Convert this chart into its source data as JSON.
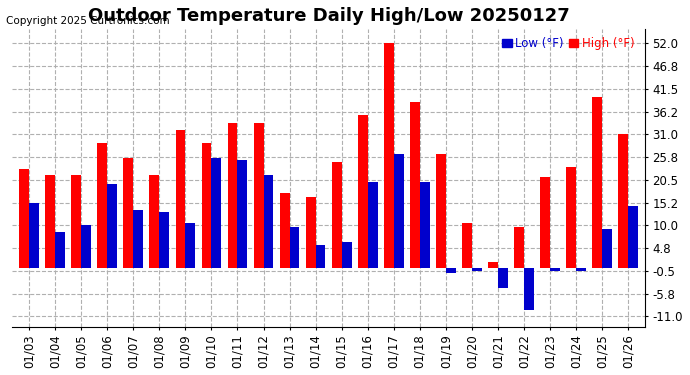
{
  "title": "Outdoor Temperature Daily High/Low 20250127",
  "copyright": "Copyright 2025 Curtronics.com",
  "legend_low": "Low (°F)",
  "legend_high": "High (°F)",
  "categories": [
    "01/03",
    "01/04",
    "01/05",
    "01/06",
    "01/07",
    "01/08",
    "01/09",
    "01/10",
    "01/11",
    "01/12",
    "01/13",
    "01/14",
    "01/15",
    "01/16",
    "01/17",
    "01/18",
    "01/19",
    "01/20",
    "01/21",
    "01/22",
    "01/23",
    "01/24",
    "01/25",
    "01/26"
  ],
  "highs": [
    23.0,
    21.5,
    21.5,
    29.0,
    25.5,
    21.5,
    32.0,
    29.0,
    33.5,
    33.5,
    17.5,
    16.5,
    24.5,
    35.5,
    52.0,
    38.5,
    26.5,
    10.5,
    1.5,
    9.5,
    21.0,
    23.5,
    39.5,
    31.0
  ],
  "lows": [
    15.0,
    8.5,
    10.0,
    19.5,
    13.5,
    13.0,
    10.5,
    25.5,
    25.0,
    21.5,
    9.5,
    5.5,
    6.0,
    20.0,
    26.5,
    20.0,
    -1.0,
    -0.5,
    -4.5,
    -9.5,
    -0.5,
    -0.5,
    9.0,
    14.5
  ],
  "high_color": "#ff0000",
  "low_color": "#0000cc",
  "background_color": "#ffffff",
  "grid_color": "#b0b0b0",
  "ylim": [
    -13.4,
    55.2
  ],
  "yticks": [
    -11.0,
    -5.8,
    -0.5,
    4.8,
    10.0,
    15.2,
    20.5,
    25.8,
    31.0,
    36.2,
    41.5,
    46.8,
    52.0
  ],
  "title_fontsize": 13,
  "tick_fontsize": 8.5,
  "copyright_fontsize": 7.5
}
